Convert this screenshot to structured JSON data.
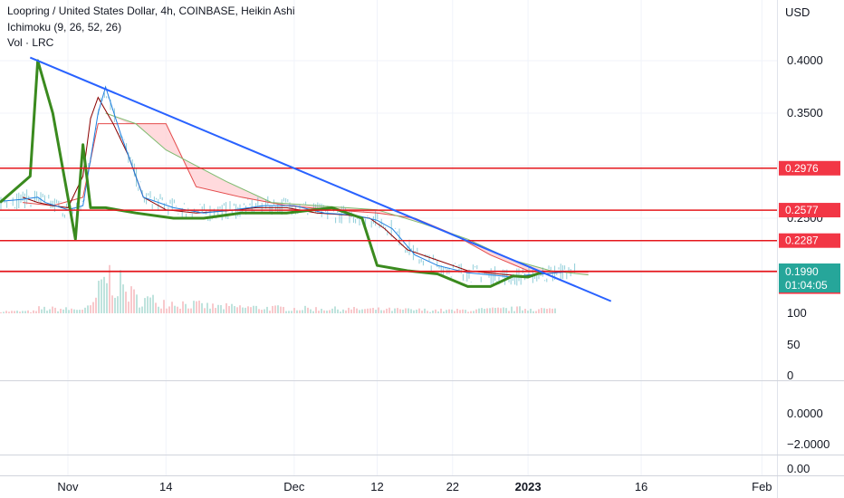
{
  "header": {
    "symbol_line": "Loopring / United States Dollar, 4h, COINBASE, Heikin Ashi",
    "ichimoku_line": "Ichimoku (9, 26, 52, 26)",
    "volume_line": "Vol · LRC"
  },
  "colors": {
    "background": "#ffffff",
    "grid": "#f0f3fa",
    "axis_border": "#e0e3eb",
    "level_line": "#e5171c",
    "level_badge": "#f23645",
    "last_price_badge": "#26a69a",
    "trendline": "#2962ff",
    "conversion": "#1e7fe0",
    "base": "#8b0000",
    "lagging": "#3a8a1e",
    "span_a": "#7dbb6f",
    "span_b": "#e44b4b",
    "cloud_bearish": "#ffcdd2",
    "volume": "#f8c9cc"
  },
  "price_axis": {
    "currency": "USD",
    "ticks": [
      "0.4000",
      "0.3500",
      "0.2500"
    ]
  },
  "levels": [
    {
      "label": "0.2976",
      "value": 0.2976
    },
    {
      "label": "0.2577",
      "value": 0.2577
    },
    {
      "label": "0.2287",
      "value": 0.2287
    },
    {
      "label": "0.1995",
      "value": 0.1995
    },
    {
      "label": "0.1992",
      "value": 0.1992
    }
  ],
  "last_price": {
    "label": "0.1990",
    "value": 0.199,
    "countdown": "01:04:05"
  },
  "volume_axis": {
    "ticks": [
      "100",
      "50",
      "0"
    ]
  },
  "indicator_axis": {
    "ticks": [
      "0.0000",
      "−2.0000"
    ]
  },
  "bottom_axis": {
    "ticks": [
      "0.00"
    ]
  },
  "time_axis": {
    "labels": [
      {
        "label": "Nov",
        "bold": false
      },
      {
        "label": "14",
        "bold": false
      },
      {
        "label": "Dec",
        "bold": false
      },
      {
        "label": "12",
        "bold": false
      },
      {
        "label": "22",
        "bold": false
      },
      {
        "label": "2023",
        "bold": true
      },
      {
        "label": "16",
        "bold": false
      },
      {
        "label": "Feb",
        "bold": false
      }
    ]
  },
  "chart_data": {
    "type": "line",
    "title": "Loopring / United States Dollar, 4h, COINBASE, Heikin Ashi",
    "ylabel": "USD",
    "ylim": [
      0.17,
      0.425
    ],
    "x_tick_labels": [
      "Nov",
      "14",
      "Dec",
      "12",
      "22",
      "2023",
      "16",
      "Feb"
    ],
    "y_tick_labels": [
      "0.4000",
      "0.3500",
      "0.2500"
    ],
    "horizontal_levels": [
      0.2976,
      0.2577,
      0.2287,
      0.1995,
      0.1992
    ],
    "trendline": {
      "start": [
        "Oct 27",
        0.403
      ],
      "end": [
        "Jan 12",
        0.171
      ]
    },
    "series": [
      {
        "name": "Vol · LRC",
        "x": [
          "Oct 28",
          "Nov 2",
          "Nov 4",
          "Nov 6",
          "Nov 10",
          "Nov 20",
          "Dec 1",
          "Dec 12",
          "Dec 22",
          "Jan 1",
          "Jan 8"
        ],
        "values": [
          10,
          8,
          12,
          80,
          30,
          14,
          10,
          8,
          6,
          10,
          5
        ]
      },
      {
        "x": [
          "Oct 23",
          "Oct 26",
          "Oct 28",
          "Oct 29",
          "Nov 1",
          "Nov 3",
          "Nov 5",
          "Nov 6",
          "Nov 8",
          "Nov 11",
          "Nov 15",
          "Nov 19",
          "Nov 23",
          "Nov 27",
          "Dec 1",
          "Dec 5",
          "Dec 9",
          "Dec 12",
          "Dec 14",
          "Dec 17",
          "Dec 20",
          "Dec 24",
          "Dec 27",
          "Dec 30",
          "Jan 1",
          "Jan 3",
          "Jan 6"
        ],
        "values": [
          0.266,
          0.268,
          0.27,
          0.265,
          0.258,
          0.262,
          0.35,
          0.375,
          0.33,
          0.27,
          0.26,
          0.255,
          0.258,
          0.262,
          0.262,
          0.255,
          0.253,
          0.248,
          0.24,
          0.215,
          0.205,
          0.198,
          0.196,
          0.194,
          0.196,
          0.197,
          0.199
        ]
      },
      {
        "x": [
          "Oct 26",
          "Oct 28",
          "Oct 30",
          "Nov 1",
          "Nov 3",
          "Nov 4",
          "Nov 5",
          "Nov 7",
          "Nov 9",
          "Nov 11",
          "Nov 14",
          "Nov 18",
          "Nov 22",
          "Nov 26",
          "Nov 30",
          "Dec 4",
          "Dec 8",
          "Dec 11",
          "Dec 13",
          "Dec 16",
          "Dec 20",
          "Dec 24",
          "Dec 28",
          "Dec 31",
          "Jan 3",
          "Jan 6"
        ],
        "values": [
          0.27,
          0.265,
          0.262,
          0.26,
          0.29,
          0.345,
          0.365,
          0.34,
          0.31,
          0.27,
          0.258,
          0.255,
          0.257,
          0.26,
          0.26,
          0.255,
          0.253,
          0.25,
          0.24,
          0.22,
          0.21,
          0.2,
          0.197,
          0.195,
          0.197,
          0.199
        ]
      },
      {
        "x": [
          "Oct 26",
          "Oct 30",
          "Nov 3",
          "Nov 5",
          "Nov 9",
          "Nov 14",
          "Nov 18",
          "Nov 24",
          "Nov 30",
          "Dec 6",
          "Dec 12",
          "Dec 17",
          "Dec 22",
          "Dec 27",
          "Jan 1",
          "Jan 6",
          "Jan 9"
        ],
        "values": [
          0.265,
          0.262,
          0.27,
          0.34,
          0.34,
          0.34,
          0.28,
          0.27,
          0.262,
          0.258,
          0.255,
          0.25,
          0.235,
          0.215,
          0.2,
          0.199,
          0.199
        ]
      },
      {
        "x": [
          "Oct 23",
          "Oct 27",
          "Oct 28",
          "Oct 30",
          "Nov 1",
          "Nov 2",
          "Nov 3",
          "Nov 4",
          "Nov 6",
          "Nov 10",
          "Nov 15",
          "Nov 19",
          "Nov 24",
          "Nov 30",
          "Dec 6",
          "Dec 10",
          "Dec 12",
          "Dec 16",
          "Dec 20",
          "Dec 24",
          "Dec 27",
          "Dec 30",
          "Jan 1",
          "Jan 3"
        ],
        "values": [
          0.265,
          0.29,
          0.4,
          0.35,
          0.27,
          0.23,
          0.32,
          0.26,
          0.26,
          0.255,
          0.25,
          0.25,
          0.255,
          0.255,
          0.26,
          0.25,
          0.205,
          0.2,
          0.197,
          0.185,
          0.185,
          0.195,
          0.194,
          0.199
        ]
      },
      {
        "x": [
          "Nov 6",
          "Nov 9",
          "Nov 12",
          "Nov 18",
          "Nov 26",
          "Dec 4",
          "Dec 12",
          "Dec 19",
          "Dec 26",
          "Jan 2",
          "Jan 7",
          "Jan 9"
        ],
        "values": [
          0.33,
          0.355,
          0.3,
          0.275,
          0.265,
          0.262,
          0.258,
          0.24,
          0.215,
          0.2,
          0.198,
          0.195
        ]
      },
      {
        "x": [
          "Nov 6",
          "Nov 10",
          "Nov 14",
          "Nov 22",
          "Nov 28",
          "Dec 4",
          "Dec 12",
          "Dec 18",
          "Dec 24",
          "Dec 30",
          "Jan 4",
          "Jan 9"
        ],
        "values": [
          0.35,
          0.34,
          0.315,
          0.285,
          0.265,
          0.262,
          0.258,
          0.245,
          0.23,
          0.21,
          0.2,
          0.196
        ]
      }
    ]
  }
}
